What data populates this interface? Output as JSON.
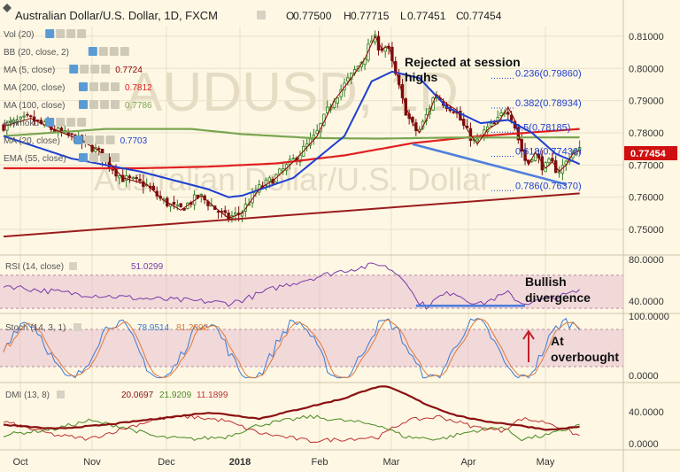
{
  "header": {
    "title": "Australian Dollar/U.S. Dollar, 1D, FXCM",
    "ohlc": [
      {
        "k": "O",
        "v": "0.77500"
      },
      {
        "k": "H",
        "v": "0.77715"
      },
      {
        "k": "L",
        "v": "0.77451"
      },
      {
        "k": "C",
        "v": "0.77454"
      }
    ]
  },
  "colors": {
    "bg": "#fdf7e4",
    "grid": "#e9e1c8",
    "up": "#2f7d1f",
    "down": "#7a1010",
    "ma5": "#8b0000",
    "ma200": "#e02020",
    "ma100": "#7aa550",
    "ma20": "#1f3fd0",
    "rsi": "#7a3aa8",
    "band": "#e8c0d0",
    "stochK": "#3a7bd5",
    "stochD": "#e07a3a",
    "adx": "#8b1010",
    "diPlus": "#4a8a20",
    "diMinus": "#c03030",
    "support": "#9b1c1c",
    "wedge": "#4f7fdc",
    "lastPrice": "#d01010",
    "fib": "#1f3fd0",
    "annot": "#111111"
  },
  "indicator_labels": [
    {
      "id": "vol",
      "text": "Vol (20)",
      "color": "#8a8a8a"
    },
    {
      "id": "bb",
      "text": "BB (20, close, 2)",
      "color": "#8a8a8a"
    },
    {
      "id": "ma5",
      "text": "MA (5, close)",
      "value": "0.7724",
      "color": "#8b0000"
    },
    {
      "id": "ma200",
      "text": "MA (200, close)",
      "value": "0.7812",
      "color": "#e02020"
    },
    {
      "id": "ma100",
      "text": "MA (100, close)",
      "value": "0.7786",
      "color": "#7aa550"
    },
    {
      "id": "ichimoku",
      "text": "Ichimoku",
      "color": "#8a8a8a"
    },
    {
      "id": "ma20",
      "text": "MA (20, close)",
      "value": "0.7703",
      "color": "#1f3fd0"
    },
    {
      "id": "ema55",
      "text": "EMA (55, close)",
      "color": "#8a8a8a"
    }
  ],
  "watermark": {
    "big": "AUDUSD, 1D",
    "small": "Australian Dollar/U.S. Dollar"
  },
  "price_axis": {
    "ticks": [
      "0.81000",
      "0.80000",
      "0.79000",
      "0.78000",
      "0.77000",
      "0.76000",
      "0.75000"
    ],
    "last": "0.77454"
  },
  "time_axis": [
    "Oct",
    "Nov",
    "Dec",
    "2018",
    "Feb",
    "Mar",
    "Apr",
    "May"
  ],
  "fib_levels": [
    {
      "label": "0.236(0.79860)",
      "price": 0.7986
    },
    {
      "label": "0.382(0.78934)",
      "price": 0.78934
    },
    {
      "label": "0.5(0.78185)",
      "price": 0.78185
    },
    {
      "label": "0.618(0.77436)",
      "price": 0.77436
    },
    {
      "label": "0.786(0.76370)",
      "price": 0.7637
    }
  ],
  "annotations": {
    "rejected": [
      "Rejected at session",
      "highs"
    ],
    "bullish": [
      "Bullish",
      "divergence"
    ],
    "overbought": [
      "At",
      "overbought"
    ]
  },
  "rsi": {
    "label": "RSI (14, close)",
    "value": "51.0299",
    "ticks": [
      "80.0000",
      "40.0000"
    ]
  },
  "stoch": {
    "label": "Stoch (14, 3, 1)",
    "k": "78.9514",
    "d": "81.2092",
    "ticks": [
      "100.0000",
      "0.0000"
    ]
  },
  "dmi": {
    "label": "DMI (13, 8)",
    "adx": "20.0697",
    "diplus": "21.9209",
    "diminus": "11.1899",
    "ticks": [
      "40.0000",
      "0.0000"
    ]
  },
  "chart_data": {
    "type": "candlestick",
    "title": "Australian Dollar/U.S. Dollar, 1D, FXCM",
    "xlabel": "",
    "ylabel": "",
    "x": [
      "Oct",
      "Nov",
      "Dec",
      "2018",
      "Feb",
      "Mar",
      "Apr",
      "May"
    ],
    "ylim": [
      0.747,
      0.813
    ],
    "anchors": [
      [
        0,
        0.782
      ],
      [
        8,
        0.7845
      ],
      [
        15,
        0.781
      ],
      [
        22,
        0.778
      ],
      [
        28,
        0.7745
      ],
      [
        35,
        0.766
      ],
      [
        42,
        0.764
      ],
      [
        47,
        0.759
      ],
      [
        52,
        0.756
      ],
      [
        58,
        0.7605
      ],
      [
        63,
        0.756
      ],
      [
        66,
        0.7535
      ],
      [
        70,
        0.755
      ],
      [
        75,
        0.7625
      ],
      [
        80,
        0.766
      ],
      [
        86,
        0.772
      ],
      [
        92,
        0.779
      ],
      [
        97,
        0.79
      ],
      [
        102,
        0.797
      ],
      [
        106,
        0.803
      ],
      [
        109,
        0.81
      ],
      [
        111,
        0.806
      ],
      [
        113,
        0.807
      ],
      [
        116,
        0.796
      ],
      [
        118,
        0.788
      ],
      [
        120,
        0.783
      ],
      [
        122,
        0.78
      ],
      [
        124,
        0.784
      ],
      [
        127,
        0.792
      ],
      [
        130,
        0.789
      ],
      [
        133,
        0.787
      ],
      [
        136,
        0.781
      ],
      [
        139,
        0.7765
      ],
      [
        142,
        0.781
      ],
      [
        145,
        0.783
      ],
      [
        148,
        0.788
      ],
      [
        150,
        0.784
      ],
      [
        152,
        0.776
      ],
      [
        154,
        0.77
      ],
      [
        156,
        0.774
      ],
      [
        159,
        0.769
      ],
      [
        161,
        0.771
      ],
      [
        163,
        0.768
      ],
      [
        165,
        0.77
      ],
      [
        167,
        0.7735
      ],
      [
        169,
        0.7745
      ]
    ],
    "ma_lines": [
      {
        "name": "MA (200, close)",
        "points": [
          [
            0,
            0.769
          ],
          [
            40,
            0.769
          ],
          [
            60,
            0.7695
          ],
          [
            80,
            0.7705
          ],
          [
            100,
            0.773
          ],
          [
            120,
            0.7768
          ],
          [
            140,
            0.779
          ],
          [
            169,
            0.7812
          ]
        ]
      },
      {
        "name": "MA (100, close)",
        "points": [
          [
            0,
            0.779
          ],
          [
            30,
            0.7812
          ],
          [
            55,
            0.7812
          ],
          [
            70,
            0.7796
          ],
          [
            90,
            0.7784
          ],
          [
            110,
            0.7782
          ],
          [
            130,
            0.7785
          ],
          [
            169,
            0.7786
          ]
        ]
      },
      {
        "name": "MA (20, close)",
        "points": [
          [
            0,
            0.779
          ],
          [
            20,
            0.772
          ],
          [
            40,
            0.768
          ],
          [
            60,
            0.7625
          ],
          [
            66,
            0.76
          ],
          [
            70,
            0.7605
          ],
          [
            85,
            0.766
          ],
          [
            100,
            0.779
          ],
          [
            108,
            0.796
          ],
          [
            114,
            0.799
          ],
          [
            122,
            0.797
          ],
          [
            130,
            0.788
          ],
          [
            140,
            0.783
          ],
          [
            148,
            0.784
          ],
          [
            155,
            0.78
          ],
          [
            162,
            0.7735
          ],
          [
            169,
            0.7703
          ]
        ]
      }
    ],
    "trendlines": [
      {
        "name": "support",
        "points": [
          [
            0,
            0.7478
          ],
          [
            169,
            0.7612
          ]
        ]
      },
      {
        "name": "falling-wedge",
        "points": [
          [
            120,
            0.7765
          ],
          [
            165,
            0.764
          ]
        ]
      }
    ],
    "rsi": {
      "ylim": [
        28,
        90
      ],
      "value": 51.0299,
      "anchors": [
        [
          0,
          58
        ],
        [
          10,
          52
        ],
        [
          20,
          48
        ],
        [
          30,
          45
        ],
        [
          40,
          42
        ],
        [
          50,
          40
        ],
        [
          60,
          38
        ],
        [
          66,
          36
        ],
        [
          70,
          40
        ],
        [
          80,
          55
        ],
        [
          90,
          66
        ],
        [
          100,
          76
        ],
        [
          106,
          80
        ],
        [
          110,
          84
        ],
        [
          114,
          76
        ],
        [
          118,
          64
        ],
        [
          121,
          40
        ],
        [
          124,
          32
        ],
        [
          128,
          44
        ],
        [
          132,
          50
        ],
        [
          136,
          40
        ],
        [
          140,
          35
        ],
        [
          144,
          42
        ],
        [
          148,
          48
        ],
        [
          152,
          36
        ],
        [
          156,
          38
        ],
        [
          160,
          42
        ],
        [
          164,
          45
        ],
        [
          169,
          51
        ]
      ]
    },
    "stoch": {
      "ylim": [
        0,
        100
      ],
      "k": 78.9514,
      "d": 81.2092,
      "overbought": 80,
      "oversold": 20
    },
    "dmi": {
      "ylim": [
        0,
        60
      ],
      "adx": 20.0697,
      "diplus": 21.9209,
      "diminus": 11.1899
    }
  }
}
